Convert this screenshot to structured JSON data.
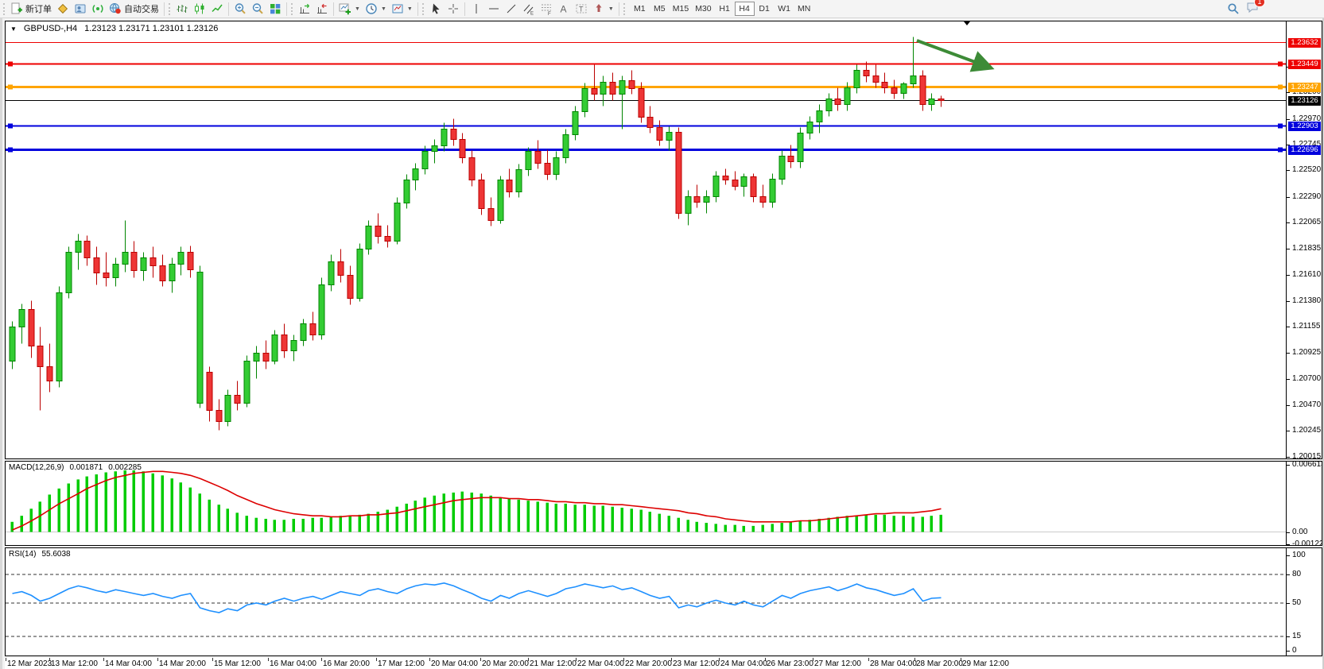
{
  "toolbar": {
    "new_order_label": "新订单",
    "autotrading_label": "自动交易",
    "timeframes": [
      "M1",
      "M5",
      "M15",
      "M30",
      "H1",
      "H4",
      "D1",
      "W1",
      "MN"
    ],
    "selected_timeframe": "H4",
    "notification_badge": "1",
    "icon_names": [
      "new-order-icon",
      "market-watch-icon",
      "data-window-icon",
      "signals-icon",
      "autotrading-globe-icon",
      "bar-chart-icon",
      "candlestick-chart-icon",
      "line-chart-icon",
      "zoom-in-icon",
      "zoom-out-icon",
      "tile-windows-icon",
      "auto-scroll-icon",
      "chart-shift-icon",
      "new-chart-icon",
      "periods-icon",
      "templates-icon",
      "cursor-icon",
      "crosshair-icon",
      "vertical-line-icon",
      "horizontal-line-icon",
      "trendline-icon",
      "equidistant-channel-icon",
      "fibonacci-icon",
      "text-icon",
      "text-label-icon",
      "arrows-icon",
      "search-icon",
      "chat-icon"
    ]
  },
  "chart": {
    "symbol_period": "GBPUSD-,H4",
    "ohlc": "1.23123 1.23171 1.23101 1.23126"
  },
  "macd": {
    "label": "MACD(12,26,9)",
    "value": "0.001871",
    "signal": "0.002285",
    "axis": [
      "0.006613",
      "0.00",
      "-0.001221"
    ]
  },
  "rsi": {
    "label": "RSI(14)",
    "value": "55.6038",
    "axis": [
      "100",
      "80",
      "50",
      "15",
      "0"
    ],
    "levels": [
      80,
      50,
      15
    ]
  },
  "chart_data": {
    "type": "candlestick",
    "symbol": "GBPUSD",
    "period": "H4",
    "price_ticks": [
      "1.23425",
      "1.23200",
      "1.22970",
      "1.22745",
      "1.22520",
      "1.22290",
      "1.22065",
      "1.21835",
      "1.21610",
      "1.21380",
      "1.21155",
      "1.20925",
      "1.20700",
      "1.20470",
      "1.20245",
      "1.20015"
    ],
    "hlines": [
      {
        "price": 1.23632,
        "label": "1.23632",
        "color": "#ee0000",
        "width": 1,
        "handles": false
      },
      {
        "price": 1.23449,
        "label": "1.23449",
        "color": "#ee0000",
        "width": 2,
        "handles": true
      },
      {
        "price": 1.23247,
        "label": "1.23247",
        "color": "#ffa400",
        "width": 3,
        "handles": true
      },
      {
        "price": 1.23126,
        "label": "1.23126",
        "color": "#000000",
        "width": 1,
        "handles": false
      },
      {
        "price": 1.22903,
        "label": "1.22903",
        "color": "#0000dd",
        "width": 2,
        "handles": true
      },
      {
        "price": 1.22696,
        "label": "1.22696",
        "color": "#0000dd",
        "width": 3,
        "handles": true
      }
    ],
    "candles": [
      [
        1.2085,
        1.212,
        1.2078,
        1.2115
      ],
      [
        1.2115,
        1.2135,
        1.21,
        1.213
      ],
      [
        1.213,
        1.2138,
        1.2088,
        1.2098
      ],
      [
        1.2098,
        1.2115,
        1.2042,
        1.208
      ],
      [
        1.208,
        1.21,
        1.2058,
        1.2068
      ],
      [
        1.2068,
        1.215,
        1.2062,
        1.2145
      ],
      [
        1.2145,
        1.2185,
        1.214,
        1.218
      ],
      [
        1.218,
        1.2196,
        1.2165,
        1.219
      ],
      [
        1.219,
        1.2195,
        1.2168,
        1.2175
      ],
      [
        1.2175,
        1.2185,
        1.2152,
        1.2162
      ],
      [
        1.2162,
        1.218,
        1.215,
        1.2158
      ],
      [
        1.2158,
        1.2175,
        1.215,
        1.217
      ],
      [
        1.217,
        1.2208,
        1.2163,
        1.218
      ],
      [
        1.218,
        1.219,
        1.2158,
        1.2164
      ],
      [
        1.2164,
        1.218,
        1.2155,
        1.2175
      ],
      [
        1.2175,
        1.2185,
        1.2158,
        1.2168
      ],
      [
        1.2168,
        1.2178,
        1.215,
        1.2155
      ],
      [
        1.2155,
        1.2175,
        1.2145,
        1.217
      ],
      [
        1.217,
        1.2185,
        1.216,
        1.218
      ],
      [
        1.218,
        1.2186,
        1.2158,
        1.2165
      ],
      [
        1.2048,
        1.2168,
        1.2044,
        1.2163
      ],
      [
        1.2075,
        1.208,
        1.2032,
        1.2042
      ],
      [
        1.2042,
        1.2052,
        1.2025,
        1.2032
      ],
      [
        1.2032,
        1.206,
        1.2028,
        1.2055
      ],
      [
        1.2055,
        1.2068,
        1.2042,
        1.2048
      ],
      [
        1.2048,
        1.209,
        1.2045,
        1.2085
      ],
      [
        1.2085,
        1.2098,
        1.207,
        1.2092
      ],
      [
        1.2092,
        1.2103,
        1.2078,
        1.2085
      ],
      [
        1.2085,
        1.2112,
        1.2082,
        1.2108
      ],
      [
        1.2108,
        1.2118,
        1.2088,
        1.2094
      ],
      [
        1.2094,
        1.2108,
        1.2085,
        1.2103
      ],
      [
        1.2103,
        1.2122,
        1.2098,
        1.2118
      ],
      [
        1.2118,
        1.2128,
        1.2103,
        1.2108
      ],
      [
        1.2108,
        1.2158,
        1.2104,
        1.2152
      ],
      [
        1.2152,
        1.2178,
        1.2146,
        1.2172
      ],
      [
        1.2172,
        1.2183,
        1.2154,
        1.216
      ],
      [
        1.216,
        1.2168,
        1.2134,
        1.214
      ],
      [
        1.214,
        1.2188,
        1.2137,
        1.2183
      ],
      [
        1.2183,
        1.2208,
        1.2178,
        1.2203
      ],
      [
        1.2203,
        1.2214,
        1.2188,
        1.2194
      ],
      [
        1.2194,
        1.2204,
        1.2184,
        1.219
      ],
      [
        1.219,
        1.2228,
        1.2187,
        1.2223
      ],
      [
        1.2223,
        1.2248,
        1.2218,
        1.2243
      ],
      [
        1.2243,
        1.2258,
        1.2234,
        1.2253
      ],
      [
        1.2253,
        1.2273,
        1.2248,
        1.2268
      ],
      [
        1.2268,
        1.2279,
        1.2258,
        1.2273
      ],
      [
        1.2273,
        1.2293,
        1.2268,
        1.2288
      ],
      [
        1.2288,
        1.2297,
        1.2273,
        1.2279
      ],
      [
        1.2279,
        1.2284,
        1.2258,
        1.2263
      ],
      [
        1.2263,
        1.2269,
        1.2238,
        1.2243
      ],
      [
        1.2243,
        1.2249,
        1.2213,
        1.2218
      ],
      [
        1.2218,
        1.2228,
        1.2203,
        1.2208
      ],
      [
        1.2208,
        1.2247,
        1.2205,
        1.2243
      ],
      [
        1.2243,
        1.2253,
        1.2228,
        1.2233
      ],
      [
        1.2233,
        1.2257,
        1.2228,
        1.2252
      ],
      [
        1.2252,
        1.2272,
        1.2247,
        1.2268
      ],
      [
        1.2268,
        1.2278,
        1.2253,
        1.2258
      ],
      [
        1.2258,
        1.227,
        1.2243,
        1.2248
      ],
      [
        1.2248,
        1.2268,
        1.2243,
        1.2263
      ],
      [
        1.2263,
        1.2288,
        1.2258,
        1.2283
      ],
      [
        1.2283,
        1.2308,
        1.2278,
        1.2303
      ],
      [
        1.2303,
        1.2328,
        1.2298,
        1.2323
      ],
      [
        1.2323,
        1.2344,
        1.2313,
        1.2318
      ],
      [
        1.2318,
        1.2334,
        1.2308,
        1.2329
      ],
      [
        1.2329,
        1.2337,
        1.2313,
        1.2318
      ],
      [
        1.2318,
        1.2334,
        1.2288,
        1.233
      ],
      [
        1.233,
        1.2339,
        1.2318,
        1.2323
      ],
      [
        1.2323,
        1.2329,
        1.2293,
        1.2298
      ],
      [
        1.2298,
        1.2308,
        1.2284,
        1.2289
      ],
      [
        1.2289,
        1.2295,
        1.2273,
        1.2278
      ],
      [
        1.2278,
        1.229,
        1.2269,
        1.2285
      ],
      [
        1.2285,
        1.2289,
        1.2209,
        1.2214
      ],
      [
        1.2214,
        1.2234,
        1.2204,
        1.2229
      ],
      [
        1.2229,
        1.2239,
        1.2219,
        1.2224
      ],
      [
        1.2224,
        1.2234,
        1.2214,
        1.2229
      ],
      [
        1.2229,
        1.2251,
        1.2224,
        1.2247
      ],
      [
        1.2247,
        1.2253,
        1.2239,
        1.2243
      ],
      [
        1.2243,
        1.2251,
        1.2234,
        1.2238
      ],
      [
        1.2238,
        1.2249,
        1.2229,
        1.2246
      ],
      [
        1.2246,
        1.2249,
        1.2224,
        1.2229
      ],
      [
        1.2229,
        1.2239,
        1.2219,
        1.2224
      ],
      [
        1.2224,
        1.2249,
        1.2219,
        1.2244
      ],
      [
        1.2244,
        1.2269,
        1.2239,
        1.2264
      ],
      [
        1.2264,
        1.2274,
        1.2254,
        1.2259
      ],
      [
        1.2259,
        1.2289,
        1.2254,
        1.2284
      ],
      [
        1.2284,
        1.2299,
        1.2279,
        1.2294
      ],
      [
        1.2294,
        1.2309,
        1.2284,
        1.2304
      ],
      [
        1.2304,
        1.2319,
        1.2299,
        1.2314
      ],
      [
        1.2314,
        1.2324,
        1.2304,
        1.2309
      ],
      [
        1.2309,
        1.2329,
        1.2304,
        1.2324
      ],
      [
        1.2324,
        1.2344,
        1.2319,
        1.2339
      ],
      [
        1.2339,
        1.2347,
        1.2329,
        1.2334
      ],
      [
        1.2334,
        1.2344,
        1.2324,
        1.2329
      ],
      [
        1.2329,
        1.2337,
        1.2319,
        1.2324
      ],
      [
        1.2324,
        1.2331,
        1.2314,
        1.2319
      ],
      [
        1.2319,
        1.2329,
        1.2314,
        1.2327
      ],
      [
        1.2327,
        1.2368,
        1.2324,
        1.2334
      ],
      [
        1.2334,
        1.2339,
        1.2304,
        1.2309
      ],
      [
        1.2309,
        1.2319,
        1.2304,
        1.2314
      ],
      [
        1.2314,
        1.2317,
        1.2307,
        1.23126
      ]
    ],
    "macd_histogram": [
      0.001,
      0.0016,
      0.0023,
      0.003,
      0.0037,
      0.0043,
      0.0048,
      0.0052,
      0.0055,
      0.0057,
      0.0059,
      0.006,
      0.0061,
      0.0061,
      0.006,
      0.0058,
      0.0056,
      0.0053,
      0.0049,
      0.0044,
      0.0038,
      0.0032,
      0.0027,
      0.0023,
      0.0019,
      0.0016,
      0.0014,
      0.0013,
      0.0012,
      0.0012,
      0.0013,
      0.0013,
      0.0014,
      0.0014,
      0.0015,
      0.0016,
      0.0016,
      0.0017,
      0.0018,
      0.002,
      0.0022,
      0.0025,
      0.0028,
      0.0031,
      0.0034,
      0.0036,
      0.0038,
      0.0039,
      0.004,
      0.0039,
      0.0038,
      0.0036,
      0.0034,
      0.0033,
      0.0032,
      0.0031,
      0.003,
      0.0029,
      0.0028,
      0.0028,
      0.0027,
      0.0027,
      0.0026,
      0.0026,
      0.0025,
      0.0024,
      0.0023,
      0.0022,
      0.002,
      0.0018,
      0.0016,
      0.0014,
      0.0012,
      0.001,
      0.0009,
      0.0008,
      0.0007,
      0.0007,
      0.0006,
      0.0006,
      0.0007,
      0.0008,
      0.0009,
      0.001,
      0.0011,
      0.0012,
      0.0013,
      0.0014,
      0.0015,
      0.0016,
      0.0016,
      0.0017,
      0.0017,
      0.0017,
      0.0016,
      0.0016,
      0.0015,
      0.0015,
      0.0016,
      0.0017
    ],
    "macd_signal": [
      0.0002,
      0.0006,
      0.0011,
      0.0016,
      0.0022,
      0.0028,
      0.0033,
      0.0038,
      0.0043,
      0.0047,
      0.0051,
      0.0054,
      0.0056,
      0.0058,
      0.0059,
      0.006,
      0.006,
      0.0059,
      0.0058,
      0.0056,
      0.0053,
      0.0049,
      0.0045,
      0.0041,
      0.0036,
      0.0032,
      0.0028,
      0.0025,
      0.0022,
      0.002,
      0.0018,
      0.0017,
      0.0016,
      0.0016,
      0.0015,
      0.0015,
      0.0016,
      0.0016,
      0.0017,
      0.0017,
      0.0018,
      0.0019,
      0.0021,
      0.0023,
      0.0025,
      0.0027,
      0.0029,
      0.0031,
      0.0032,
      0.0033,
      0.0034,
      0.0034,
      0.0034,
      0.0033,
      0.0033,
      0.0032,
      0.0032,
      0.0031,
      0.003,
      0.003,
      0.0029,
      0.0029,
      0.0028,
      0.0028,
      0.0027,
      0.0027,
      0.0026,
      0.0025,
      0.0024,
      0.0023,
      0.0022,
      0.0021,
      0.0019,
      0.0018,
      0.0016,
      0.0015,
      0.0013,
      0.0012,
      0.0011,
      0.001,
      0.001,
      0.001,
      0.001,
      0.001,
      0.0011,
      0.0011,
      0.0012,
      0.0013,
      0.0014,
      0.0015,
      0.0016,
      0.0017,
      0.0018,
      0.0018,
      0.0019,
      0.0019,
      0.0019,
      0.002,
      0.0021,
      0.0023
    ],
    "rsi_values": [
      60,
      62,
      58,
      52,
      55,
      60,
      65,
      68,
      66,
      63,
      61,
      64,
      62,
      60,
      58,
      60,
      57,
      55,
      58,
      60,
      45,
      42,
      40,
      44,
      42,
      48,
      50,
      48,
      52,
      55,
      52,
      55,
      57,
      54,
      58,
      62,
      60,
      58,
      63,
      65,
      62,
      60,
      65,
      68,
      70,
      69,
      71,
      68,
      64,
      60,
      55,
      52,
      58,
      55,
      60,
      63,
      60,
      57,
      60,
      65,
      67,
      70,
      68,
      66,
      68,
      64,
      66,
      62,
      58,
      55,
      57,
      45,
      48,
      46,
      50,
      53,
      50,
      48,
      52,
      48,
      46,
      52,
      58,
      55,
      60,
      63,
      65,
      67,
      63,
      66,
      70,
      66,
      64,
      61,
      58,
      60,
      65,
      52,
      55,
      55.6
    ],
    "time_labels": [
      "12 Mar 2023",
      "13 Mar 12:00",
      "14 Mar 04:00",
      "14 Mar 20:00",
      "15 Mar 12:00",
      "16 Mar 04:00",
      "16 Mar 20:00",
      "17 Mar 12:00",
      "20 Mar 04:00",
      "20 Mar 20:00",
      "21 Mar 12:00",
      "22 Mar 04:00",
      "22 Mar 20:00",
      "23 Mar 12:00",
      "24 Mar 04:00",
      "26 Mar 23:00",
      "27 Mar 12:00",
      "28 Mar 04:00",
      "28 Mar 20:00",
      "29 Mar 12:00"
    ],
    "annotation_arrow": {
      "color": "#3d8b37"
    },
    "colors": {
      "up": "#33cc33",
      "up_stroke": "#008500",
      "down": "#ee3535",
      "down_stroke": "#bb0000",
      "macd_hist": "#00cc00",
      "macd_signal": "#dd0000",
      "rsi": "#1e90ff",
      "level_dash": "#333333"
    }
  }
}
